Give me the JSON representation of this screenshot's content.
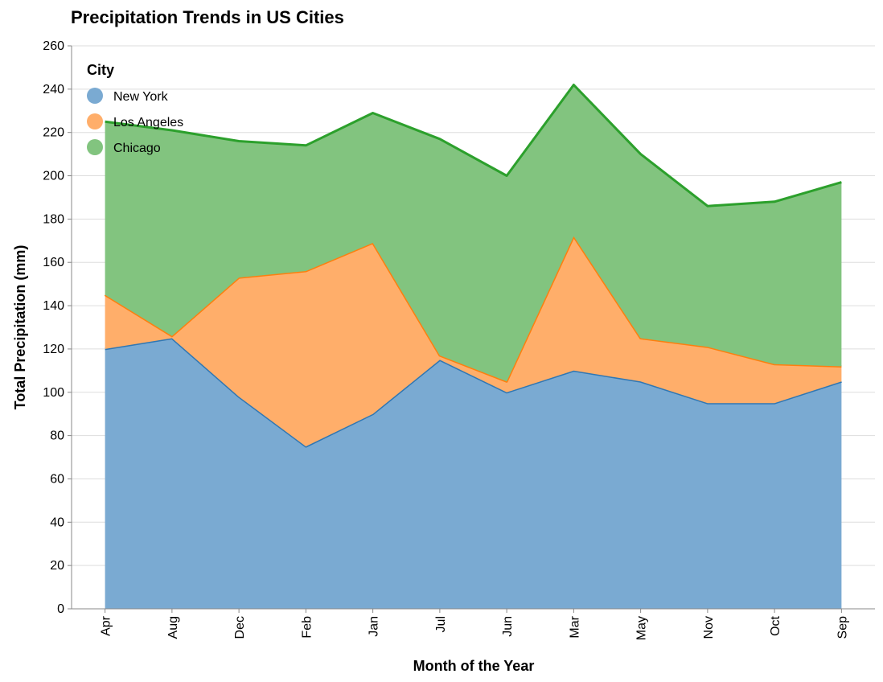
{
  "chart_data": {
    "type": "area",
    "stacked": true,
    "title": "Precipitation Trends in US Cities",
    "xlabel": "Month of the Year",
    "ylabel": "Total Precipitation (mm)",
    "ylim": [
      0,
      260
    ],
    "yticks": [
      0,
      20,
      40,
      60,
      80,
      100,
      120,
      140,
      160,
      180,
      200,
      220,
      240,
      260
    ],
    "grid": true,
    "legend_title": "City",
    "legend_position": "top-left",
    "categories": [
      "Apr",
      "Aug",
      "Dec",
      "Feb",
      "Jan",
      "Jul",
      "Jun",
      "Mar",
      "May",
      "Nov",
      "Oct",
      "Sep"
    ],
    "series": [
      {
        "name": "New York",
        "color": "#4c78a8",
        "fill": "#7aaad2",
        "line": "#2f77b4",
        "values": [
          120,
          125,
          98,
          75,
          90,
          115,
          100,
          110,
          105,
          95,
          95,
          105
        ]
      },
      {
        "name": "Los Angeles",
        "color": "#ff7f0e",
        "fill": "#ffae6a",
        "line": "#ff7f0e",
        "values": [
          25,
          1,
          55,
          81,
          79,
          2,
          5,
          62,
          20,
          26,
          18,
          7
        ]
      },
      {
        "name": "Chicago",
        "color": "#2ca02c",
        "fill": "#82c47f",
        "line": "#2ca02c",
        "values": [
          80,
          95,
          63,
          58,
          60,
          100,
          95,
          70,
          85,
          65,
          75,
          85
        ]
      }
    ]
  }
}
